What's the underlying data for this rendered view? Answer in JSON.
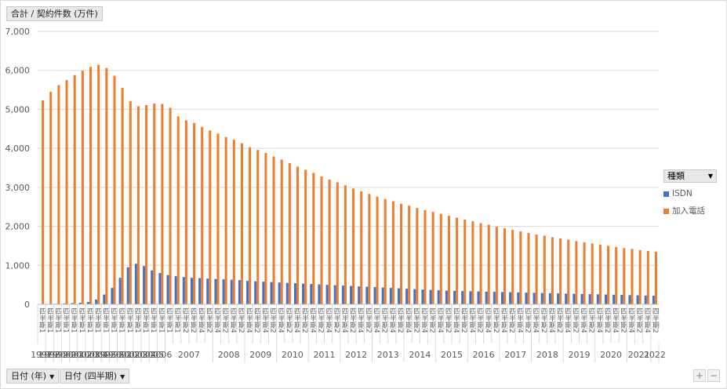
{
  "value_field": {
    "label": "合計 / 契約件数 (万件)"
  },
  "axis_fields": [
    {
      "label": "日付 (年)"
    },
    {
      "label": "日付 (四半期)"
    }
  ],
  "legend": {
    "title": "種類",
    "items": [
      {
        "label": "ISDN",
        "color": "#4472c4"
      },
      {
        "label": "加入電話",
        "color": "#ed7d31"
      }
    ]
  },
  "zoom_buttons": {
    "plus": "+",
    "minus": "−"
  },
  "chart_data": {
    "type": "bar",
    "ylim": [
      0,
      7000
    ],
    "yticks": [
      "0",
      "1,000",
      "2,000",
      "3,000",
      "4,000",
      "5,000",
      "6,000",
      "7,000"
    ],
    "categories": [
      "四半期1",
      "四半期1",
      "四半期1",
      "四半期1",
      "四半期1",
      "四半期1",
      "四半期1",
      "四半期1",
      "四半期1",
      "四半期1",
      "四半期1",
      "四半期1",
      "四半期1",
      "四半期1",
      "四半期1",
      "四半期1",
      "四半期1",
      "四半期1",
      "四半期2",
      "四半期2",
      "四半期4",
      "四半期2",
      "四半期4",
      "四半期2",
      "四半期4",
      "四半期2",
      "四半期4",
      "四半期2",
      "四半期4",
      "四半期2",
      "四半期4",
      "四半期2",
      "四半期4",
      "四半期2",
      "四半期4",
      "四半期2",
      "四半期4",
      "四半期2",
      "四半期4",
      "四半期2",
      "四半期4",
      "四半期2",
      "四半期4",
      "四半期2",
      "四半期4",
      "四半期2",
      "四半期4",
      "四半期2",
      "四半期4",
      "四半期2",
      "四半期4",
      "四半期2",
      "四半期4",
      "四半期2",
      "四半期4",
      "四半期2",
      "四半期4",
      "四半期2",
      "四半期4",
      "四半期2",
      "四半期4",
      "四半期2",
      "四半期4",
      "四半期2",
      "四半期4",
      "四半期2",
      "四半期4",
      "四半期2",
      "四半期4",
      "四半期2",
      "四半期4",
      "四半期2",
      "四半期4",
      "四半期2",
      "四半期4",
      "四半期2",
      "四半期4",
      "四半期2"
    ],
    "year_labels": [
      {
        "label": "1997",
        "start": 0,
        "end": 0
      },
      {
        "label": "1998",
        "start": 1,
        "end": 1
      },
      {
        "label": "1999",
        "start": 2,
        "end": 2
      },
      {
        "label": "2000",
        "start": 3,
        "end": 3
      },
      {
        "label": "2001",
        "start": 4,
        "end": 4
      },
      {
        "label": "2002",
        "start": 5,
        "end": 5
      },
      {
        "label": "2003",
        "start": 6,
        "end": 6
      },
      {
        "label": "2004",
        "start": 7,
        "end": 7
      },
      {
        "label": "1995",
        "start": 8,
        "end": 8
      },
      {
        "label": "1996",
        "start": 9,
        "end": 9
      },
      {
        "label": "2001",
        "start": 10,
        "end": 10
      },
      {
        "label": "2002",
        "start": 11,
        "end": 11
      },
      {
        "label": "2003",
        "start": 12,
        "end": 12
      },
      {
        "label": "2004",
        "start": 13,
        "end": 13
      },
      {
        "label": "2005",
        "start": 14,
        "end": 14
      },
      {
        "label": "2006",
        "start": 15,
        "end": 15
      },
      {
        "label": "2007",
        "start": 16,
        "end": 21
      },
      {
        "label": "2008",
        "start": 22,
        "end": 25
      },
      {
        "label": "2009",
        "start": 26,
        "end": 29
      },
      {
        "label": "2010",
        "start": 30,
        "end": 33
      },
      {
        "label": "2011",
        "start": 34,
        "end": 37
      },
      {
        "label": "2012",
        "start": 38,
        "end": 41
      },
      {
        "label": "2013",
        "start": 42,
        "end": 45
      },
      {
        "label": "2014",
        "start": 46,
        "end": 49
      },
      {
        "label": "2015",
        "start": 50,
        "end": 53
      },
      {
        "label": "2016",
        "start": 54,
        "end": 57
      },
      {
        "label": "2017",
        "start": 58,
        "end": 61
      },
      {
        "label": "2018",
        "start": 62,
        "end": 65
      },
      {
        "label": "2019",
        "start": 66,
        "end": 69
      },
      {
        "label": "2020",
        "start": 70,
        "end": 73
      },
      {
        "label": "2021",
        "start": 74,
        "end": 76
      },
      {
        "label": "2022",
        "start": 77,
        "end": 77
      }
    ],
    "series": [
      {
        "name": "ISDN",
        "color": "#4472c4",
        "values": [
          5,
          10,
          15,
          20,
          30,
          40,
          60,
          120,
          250,
          420,
          680,
          950,
          1040,
          980,
          870,
          800,
          750,
          720,
          700,
          680,
          670,
          660,
          650,
          640,
          630,
          620,
          600,
          590,
          580,
          570,
          560,
          550,
          540,
          530,
          520,
          510,
          500,
          490,
          480,
          470,
          460,
          450,
          440,
          430,
          420,
          410,
          400,
          390,
          380,
          370,
          360,
          350,
          345,
          340,
          335,
          330,
          325,
          320,
          315,
          310,
          305,
          300,
          295,
          290,
          285,
          280,
          275,
          270,
          265,
          260,
          255,
          250,
          245,
          240,
          235,
          230,
          225,
          220
        ]
      },
      {
        "name": "加入電話",
        "color": "#ed7d31",
        "values": [
          5230,
          5450,
          5620,
          5750,
          5880,
          5990,
          6090,
          6140,
          6060,
          5860,
          5550,
          5210,
          5080,
          5110,
          5150,
          5140,
          5040,
          4820,
          4720,
          4650,
          4550,
          4460,
          4380,
          4290,
          4220,
          4130,
          4030,
          3960,
          3880,
          3790,
          3710,
          3620,
          3530,
          3450,
          3370,
          3280,
          3200,
          3130,
          3050,
          2970,
          2900,
          2830,
          2760,
          2700,
          2640,
          2580,
          2530,
          2470,
          2420,
          2370,
          2320,
          2270,
          2220,
          2170,
          2130,
          2080,
          2040,
          1990,
          1950,
          1910,
          1870,
          1830,
          1790,
          1760,
          1720,
          1690,
          1660,
          1620,
          1590,
          1560,
          1530,
          1500,
          1470,
          1440,
          1420,
          1390,
          1370,
          1350
        ]
      }
    ]
  }
}
